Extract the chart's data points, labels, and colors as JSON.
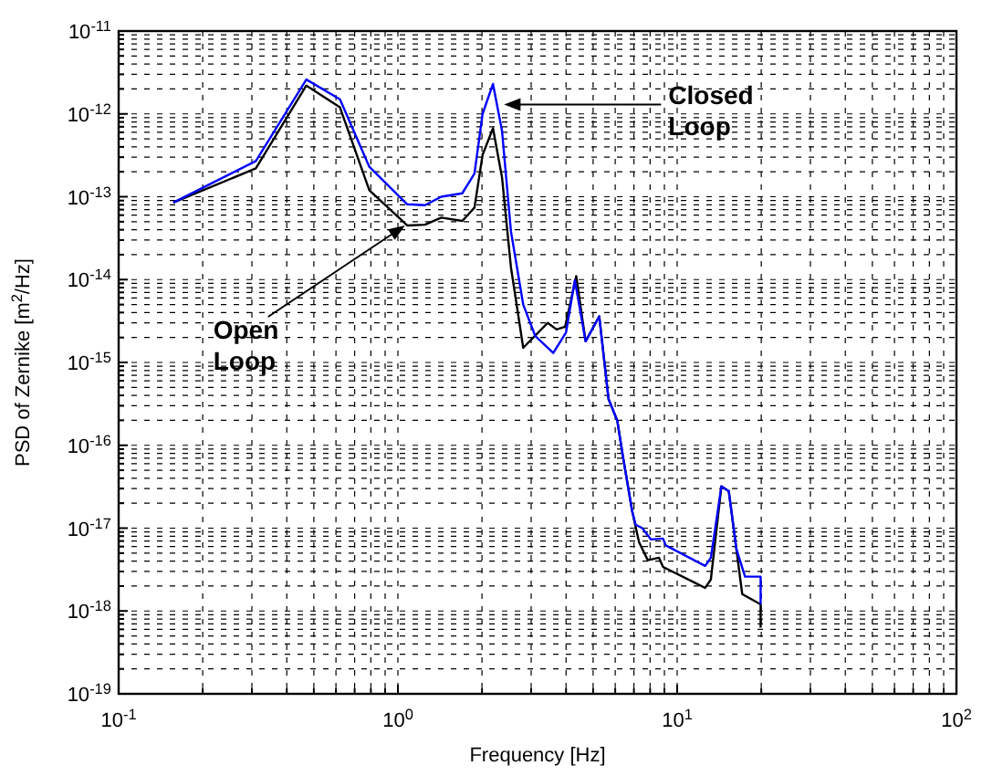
{
  "chart_data": {
    "type": "line",
    "xlabel": "Frequency [Hz]",
    "ylabel": "PSD of Zernike [m$^{2}$/Hz]",
    "log": "xy",
    "grid": true,
    "marker": "none",
    "line_style": "solid",
    "xlim": [
      0.1,
      100
    ],
    "ylim": [
      1e-19,
      1e-11
    ],
    "xticks": [
      {
        "value": 0.1,
        "label": "10$^{-1}$"
      },
      {
        "value": 1,
        "label": "10$^{0}$"
      },
      {
        "value": 10,
        "label": "10$^{1}$"
      },
      {
        "value": 100,
        "label": "10$^{2}$"
      }
    ],
    "yticks": [
      {
        "value": 1e-19,
        "label": "10$^{-19}$"
      },
      {
        "value": 1e-18,
        "label": "10$^{-18}$"
      },
      {
        "value": 1e-17,
        "label": "10$^{-17}$"
      },
      {
        "value": 1e-16,
        "label": "10$^{-16}$"
      },
      {
        "value": 1e-15,
        "label": "10$^{-15}$"
      },
      {
        "value": 1e-14,
        "label": "10$^{-14}$"
      },
      {
        "value": 1e-13,
        "label": "10$^{-13}$"
      },
      {
        "value": 1e-12,
        "label": "10$^{-12}$"
      },
      {
        "value": 1e-11,
        "label": "10$^{-11}$"
      }
    ],
    "annotations": [
      {
        "text": "Closed Loop",
        "x": 2.4,
        "y": 1.3e-12
      },
      {
        "text": "Open Loop",
        "x": 1.06,
        "y": 4.5e-14
      }
    ],
    "series": [
      {
        "color": "#000000",
        "x": [
          0.157,
          0.31,
          0.47,
          0.62,
          0.79,
          1.08,
          1.25,
          1.43,
          1.7,
          1.88,
          2.01,
          2.19,
          2.36,
          2.54,
          2.81,
          3.44,
          3.7,
          3.97,
          4.35,
          4.7,
          5.26,
          5.68,
          6.1,
          6.4,
          6.9,
          7.3,
          7.85,
          8.6,
          8.9,
          12.6,
          13.2,
          14.4,
          15.3,
          17.1,
          19.9,
          19.9
        ],
        "values": [
          8.5e-14,
          2.2e-13,
          2.2e-12,
          1.2e-12,
          1.2e-13,
          4.5e-14,
          4.6e-14,
          5.6e-14,
          5.1e-14,
          7.4e-14,
          3.2e-13,
          6.7e-13,
          1.7e-13,
          1.4e-14,
          1.5e-15,
          3e-15,
          2.5e-15,
          2.7e-15,
          1.1e-14,
          1.8e-15,
          3.6e-15,
          3.6e-16,
          2e-16,
          7.2e-17,
          1.6e-17,
          6.8e-18,
          4.1e-18,
          4.4e-18,
          3.4e-18,
          1.9e-18,
          2.4e-18,
          3.2e-17,
          2.8e-17,
          1.6e-18,
          1.2e-18,
          6.3e-19
        ]
      },
      {
        "color": "#0000ff",
        "x": [
          0.157,
          0.31,
          0.47,
          0.62,
          0.79,
          1.08,
          1.25,
          1.43,
          1.7,
          1.88,
          2.01,
          2.19,
          2.36,
          2.54,
          2.81,
          3.1,
          3.6,
          4.0,
          4.3,
          4.7,
          5.26,
          5.68,
          6.1,
          6.4,
          6.9,
          7.1,
          7.5,
          8.06,
          8.9,
          9.1,
          12.6,
          13.2,
          14.4,
          15.3,
          16.3,
          17.5,
          19.9,
          19.9
        ],
        "values": [
          8.5e-14,
          2.7e-13,
          2.6e-12,
          1.5e-12,
          2.3e-13,
          8.1e-14,
          7.9e-14,
          1e-13,
          1.1e-13,
          1.9e-13,
          1e-12,
          2.3e-12,
          6.2e-13,
          3.8e-14,
          5e-15,
          2.1e-15,
          1.3e-15,
          2.3e-15,
          9.8e-15,
          1.8e-15,
          3.6e-15,
          3.6e-16,
          2e-16,
          7.2e-17,
          1.6e-17,
          1.1e-17,
          1e-17,
          7.3e-18,
          7.5e-18,
          6.2e-18,
          3.5e-18,
          4.4e-18,
          3.2e-17,
          2.8e-17,
          5.6e-18,
          2.6e-18,
          2.6e-18,
          1.2e-18
        ]
      }
    ]
  }
}
